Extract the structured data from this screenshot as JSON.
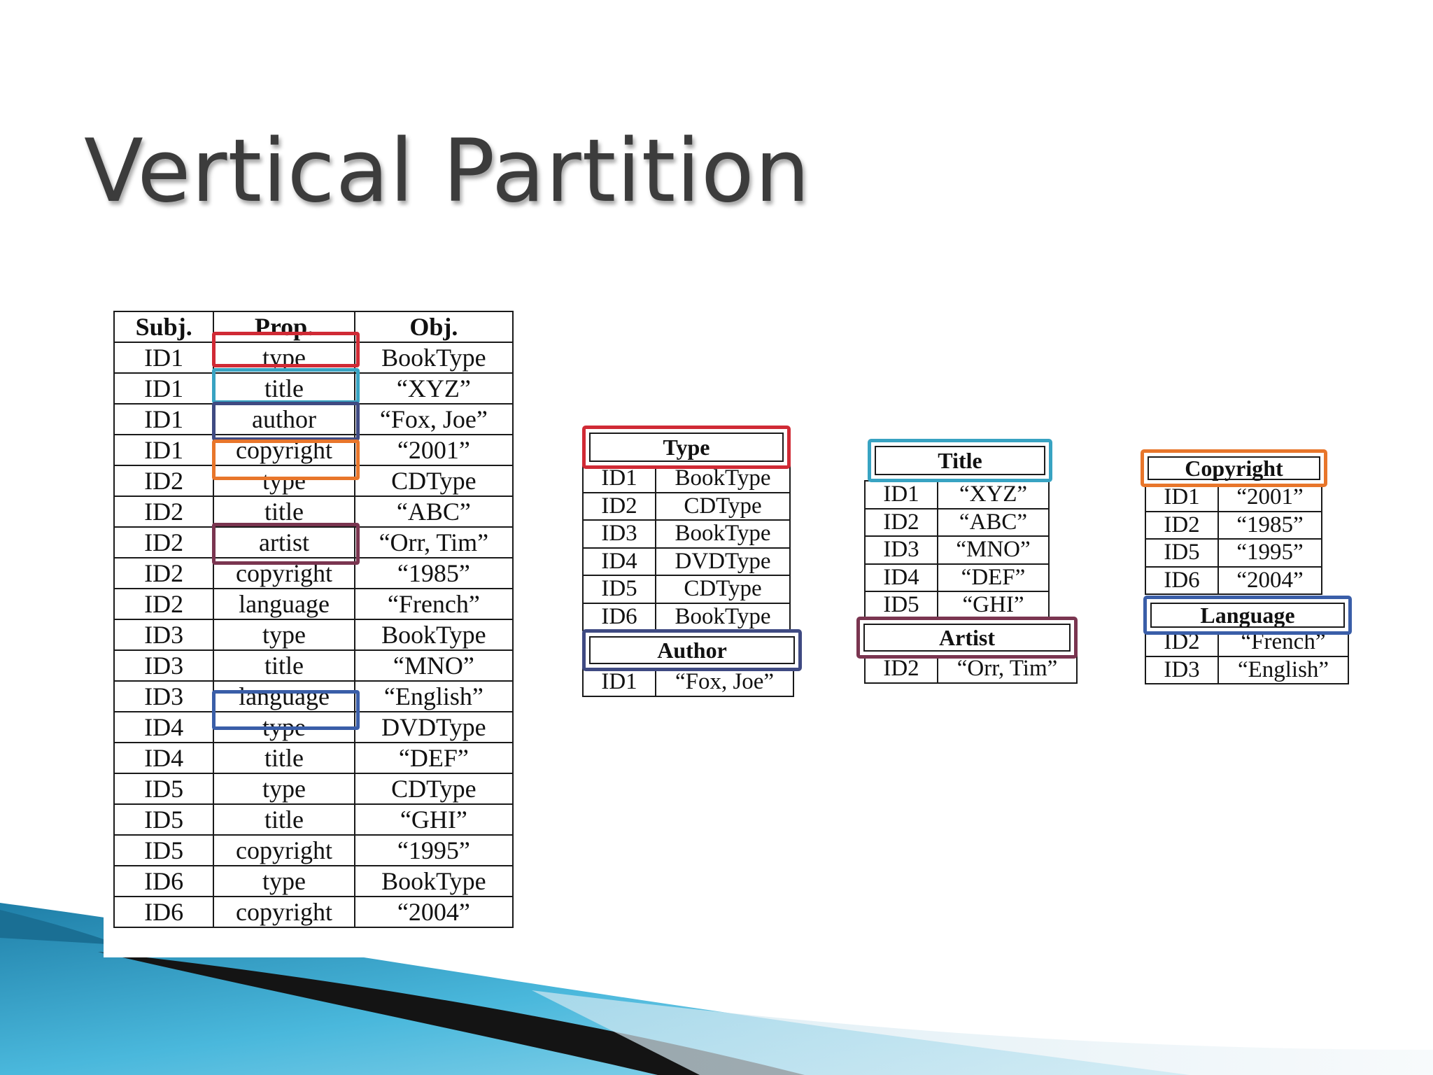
{
  "slide": {
    "title": "Vertical Partition"
  },
  "triple_table": {
    "headers": [
      "Subj.",
      "Prop.",
      "Obj."
    ],
    "rows": [
      [
        "ID1",
        "type",
        "BookType"
      ],
      [
        "ID1",
        "title",
        "“XYZ”"
      ],
      [
        "ID1",
        "author",
        "“Fox, Joe”"
      ],
      [
        "ID1",
        "copyright",
        "“2001”"
      ],
      [
        "ID2",
        "type",
        "CDType"
      ],
      [
        "ID2",
        "title",
        "“ABC”"
      ],
      [
        "ID2",
        "artist",
        "“Orr, Tim”"
      ],
      [
        "ID2",
        "copyright",
        "“1985”"
      ],
      [
        "ID2",
        "language",
        "“French”"
      ],
      [
        "ID3",
        "type",
        "BookType"
      ],
      [
        "ID3",
        "title",
        "“MNO”"
      ],
      [
        "ID3",
        "language",
        "“English”"
      ],
      [
        "ID4",
        "type",
        "DVDType"
      ],
      [
        "ID4",
        "title",
        "“DEF”"
      ],
      [
        "ID5",
        "type",
        "CDType"
      ],
      [
        "ID5",
        "title",
        "“GHI”"
      ],
      [
        "ID5",
        "copyright",
        "“1995”"
      ],
      [
        "ID6",
        "type",
        "BookType"
      ],
      [
        "ID6",
        "copyright",
        "“2004”"
      ]
    ]
  },
  "partitions": {
    "type": {
      "header": "Type",
      "rows": [
        [
          "ID1",
          "BookType"
        ],
        [
          "ID2",
          "CDType"
        ],
        [
          "ID3",
          "BookType"
        ],
        [
          "ID4",
          "DVDType"
        ],
        [
          "ID5",
          "CDType"
        ],
        [
          "ID6",
          "BookType"
        ]
      ]
    },
    "author": {
      "header": "Author",
      "rows": [
        [
          "ID1",
          "“Fox, Joe”"
        ]
      ]
    },
    "title": {
      "header": "Title",
      "rows": [
        [
          "ID1",
          "“XYZ”"
        ],
        [
          "ID2",
          "“ABC”"
        ],
        [
          "ID3",
          "“MNO”"
        ],
        [
          "ID4",
          "“DEF”"
        ],
        [
          "ID5",
          "“GHI”"
        ]
      ]
    },
    "artist": {
      "header": "Artist",
      "rows": [
        [
          "ID2",
          "“Orr, Tim”"
        ]
      ]
    },
    "copyright": {
      "header": "Copyright",
      "rows": [
        [
          "ID1",
          "“2001”"
        ],
        [
          "ID2",
          "“1985”"
        ],
        [
          "ID5",
          "“1995”"
        ],
        [
          "ID6",
          "“2004”"
        ]
      ]
    },
    "language": {
      "header": "Language",
      "rows": [
        [
          "ID2",
          "“French”"
        ],
        [
          "ID3",
          "“English”"
        ]
      ]
    }
  },
  "colors": {
    "type": "#d02a35",
    "title": "#38a3c2",
    "author": "#3f4a82",
    "copyright": "#e8762b",
    "artist": "#7a3550",
    "language": "#3a5ea8",
    "title_text": "#3c3c3c",
    "swoosh_blue": "#2f9fc8",
    "swoosh_dark": "#141414"
  }
}
